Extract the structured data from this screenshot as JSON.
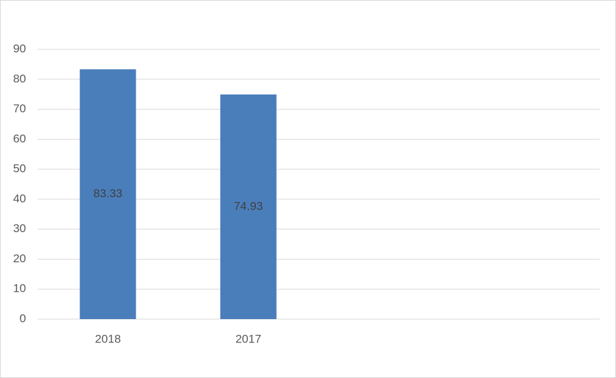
{
  "chart_data": {
    "type": "bar",
    "categories": [
      "2018",
      "2017",
      null,
      null
    ],
    "values": [
      83.33,
      74.93,
      null,
      null
    ],
    "color": "#4a7ebb",
    "ylim": [
      0,
      90
    ],
    "yticks": [
      0,
      10,
      20,
      30,
      40,
      50,
      60,
      70,
      80,
      90
    ],
    "grid": true,
    "data_labels": true
  }
}
